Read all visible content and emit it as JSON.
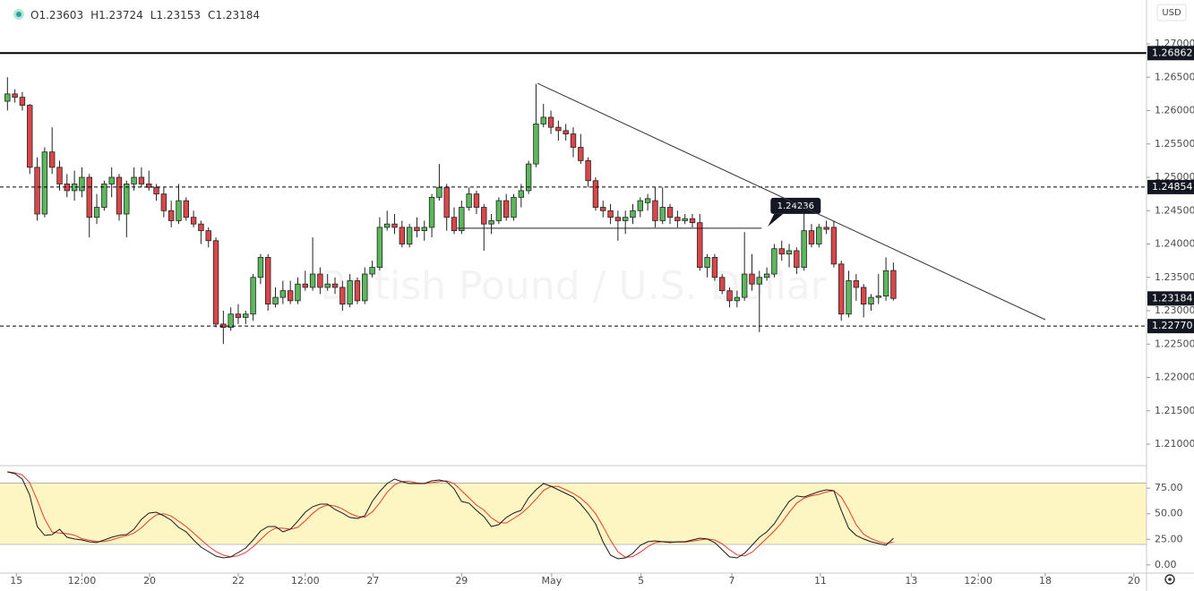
{
  "chart_data": {
    "type": "candlestick",
    "currency": "USD",
    "watermark": "British Pound / U.S. Dollar",
    "ohlc_labels": [
      "O",
      "H",
      "L",
      "C"
    ],
    "up_color": "#5cb85c",
    "down_color": "#d9474b",
    "xlim": [
      -1,
      153
    ],
    "xticks": [
      {
        "value": 1.2,
        "label": "15"
      },
      {
        "value": 10,
        "label": "12:00"
      },
      {
        "value": 19.1,
        "label": "20"
      },
      {
        "value": 31,
        "label": "22"
      },
      {
        "value": 40,
        "label": "12:00"
      },
      {
        "value": 49.1,
        "label": "27"
      },
      {
        "value": 61,
        "label": "29"
      },
      {
        "value": 73.1,
        "label": "May"
      },
      {
        "value": 85.1,
        "label": "5"
      },
      {
        "value": 97.3,
        "label": "7"
      },
      {
        "value": 109.2,
        "label": "11"
      },
      {
        "value": 121.4,
        "label": "13"
      },
      {
        "value": 130.4,
        "label": "12:00"
      },
      {
        "value": 139.4,
        "label": "18"
      },
      {
        "value": 151.3,
        "label": "20"
      }
    ],
    "ylim": [
      1.20678,
      1.27658
    ],
    "yticks": [
      {
        "value": 1.21,
        "label": "1.21000"
      },
      {
        "value": 1.215,
        "label": "1.21500"
      },
      {
        "value": 1.22,
        "label": "1.22000"
      },
      {
        "value": 1.225,
        "label": "1.22500"
      },
      {
        "value": 1.23,
        "label": "1.23000"
      },
      {
        "value": 1.235,
        "label": "1.23500"
      },
      {
        "value": 1.24,
        "label": "1.24000"
      },
      {
        "value": 1.245,
        "label": "1.24500"
      },
      {
        "value": 1.25,
        "label": "1.25000"
      },
      {
        "value": 1.255,
        "label": "1.25500"
      },
      {
        "value": 1.26,
        "label": "1.26000"
      },
      {
        "value": 1.265,
        "label": "1.26500"
      },
      {
        "value": 1.27,
        "label": "1.27000"
      }
    ],
    "open": [
      1.2614,
      1.2625,
      1.262,
      1.2608,
      1.2515,
      1.2445,
      1.2538,
      1.2515,
      1.249,
      1.248,
      1.248,
      1.25,
      1.244,
      1.2455,
      1.249,
      1.25,
      1.2445,
      1.249,
      1.25,
      1.249,
      1.2485,
      1.2475,
      1.245,
      1.2435,
      1.2465,
      1.244,
      1.243,
      1.242,
      1.2405,
      1.228,
      1.2275,
      1.2295,
      1.229,
      1.2295,
      1.235,
      1.238,
      1.231,
      1.232,
      1.233,
      1.2315,
      1.234,
      1.2335,
      1.2355,
      1.2335,
      1.234,
      1.2335,
      1.231,
      1.2345,
      1.2315,
      1.2355,
      1.2365,
      1.2425,
      1.243,
      1.2425,
      1.24,
      1.2425,
      1.242,
      1.2425,
      1.247,
      1.2485,
      1.244,
      1.242,
      1.2455,
      1.2475,
      1.2455,
      1.243,
      1.2435,
      1.2465,
      1.244,
      1.247,
      1.248,
      1.252,
      1.258,
      1.259,
      1.2575,
      1.257,
      1.2565,
      1.2545,
      1.2525,
      1.2495,
      1.2455,
      1.245,
      1.244,
      1.2435,
      1.244,
      1.245,
      1.2462,
      1.2465,
      1.2435,
      1.2455,
      1.244,
      1.2435,
      1.2438,
      1.2432,
      1.2365,
      1.238,
      1.235,
      1.233,
      1.2315,
      1.232,
      1.2355,
      1.234,
      1.235,
      1.2355,
      1.2393,
      1.2385,
      1.239,
      1.2365,
      1.242,
      1.24,
      1.2425,
      1.2425,
      1.237,
      1.2295,
      1.2345,
      1.2335,
      1.231,
      1.232,
      1.2322,
      1.23603
    ],
    "high": [
      1.265,
      1.2632,
      1.2628,
      1.261,
      1.253,
      1.2545,
      1.2575,
      1.2525,
      1.2505,
      1.251,
      1.2515,
      1.2505,
      1.2475,
      1.2495,
      1.2515,
      1.2505,
      1.2495,
      1.2515,
      1.2515,
      1.251,
      1.249,
      1.2485,
      1.2465,
      1.249,
      1.247,
      1.245,
      1.2435,
      1.2425,
      1.241,
      1.23,
      1.2305,
      1.231,
      1.23,
      1.2355,
      1.2385,
      1.2385,
      1.2335,
      1.2345,
      1.2345,
      1.235,
      1.236,
      1.241,
      1.2365,
      1.2355,
      1.235,
      1.2345,
      1.2355,
      1.235,
      1.2365,
      1.2375,
      1.244,
      1.245,
      1.2445,
      1.2435,
      1.243,
      1.244,
      1.2435,
      1.2475,
      1.252,
      1.249,
      1.2455,
      1.2465,
      1.2485,
      1.248,
      1.246,
      1.2445,
      1.247,
      1.2475,
      1.2475,
      1.249,
      1.2525,
      1.264,
      1.261,
      1.26,
      1.2585,
      1.258,
      1.2575,
      1.2565,
      1.253,
      1.25,
      1.2465,
      1.246,
      1.245,
      1.245,
      1.246,
      1.247,
      1.2475,
      1.2485,
      1.2485,
      1.246,
      1.245,
      1.2445,
      1.2445,
      1.2445,
      1.2385,
      1.2385,
      1.2355,
      1.2335,
      1.233,
      1.2418,
      1.2385,
      1.236,
      1.2365,
      1.24,
      1.2405,
      1.24,
      1.2395,
      1.245,
      1.243,
      1.243,
      1.2435,
      1.2435,
      1.2375,
      1.236,
      1.2355,
      1.234,
      1.2325,
      1.2355,
      1.238,
      1.23724
    ],
    "low": [
      1.26,
      1.2612,
      1.26,
      1.2505,
      1.2435,
      1.244,
      1.2505,
      1.248,
      1.247,
      1.2465,
      1.247,
      1.241,
      1.243,
      1.245,
      1.247,
      1.2435,
      1.241,
      1.248,
      1.2485,
      1.248,
      1.2465,
      1.244,
      1.2425,
      1.243,
      1.2435,
      1.2425,
      1.24,
      1.2395,
      1.2275,
      1.225,
      1.227,
      1.228,
      1.228,
      1.2285,
      1.234,
      1.23,
      1.2305,
      1.231,
      1.231,
      1.231,
      1.233,
      1.233,
      1.2325,
      1.233,
      1.2325,
      1.23,
      1.2305,
      1.231,
      1.231,
      1.235,
      1.236,
      1.242,
      1.2415,
      1.2395,
      1.2395,
      1.241,
      1.2405,
      1.241,
      1.2465,
      1.242,
      1.2415,
      1.2415,
      1.245,
      1.2445,
      1.239,
      1.2415,
      1.243,
      1.2435,
      1.2435,
      1.2455,
      1.2475,
      1.2515,
      1.2575,
      1.2565,
      1.2555,
      1.2555,
      1.253,
      1.252,
      1.2485,
      1.245,
      1.244,
      1.243,
      1.2405,
      1.2415,
      1.243,
      1.244,
      1.245,
      1.2425,
      1.243,
      1.243,
      1.2425,
      1.243,
      1.2425,
      1.236,
      1.235,
      1.2345,
      1.2325,
      1.2305,
      1.2305,
      1.2315,
      1.233,
      1.2268,
      1.2345,
      1.235,
      1.2375,
      1.2365,
      1.2355,
      1.236,
      1.2395,
      1.2395,
      1.2415,
      1.2365,
      1.2285,
      1.229,
      1.2315,
      1.229,
      1.23,
      1.231,
      1.2315,
      1.23153
    ],
    "close": [
      1.2625,
      1.262,
      1.2608,
      1.2515,
      1.2445,
      1.2538,
      1.2515,
      1.249,
      1.248,
      1.249,
      1.25,
      1.244,
      1.2455,
      1.249,
      1.25,
      1.2445,
      1.249,
      1.25,
      1.249,
      1.2485,
      1.2475,
      1.245,
      1.2435,
      1.2465,
      1.244,
      1.243,
      1.242,
      1.2405,
      1.228,
      1.2275,
      1.2295,
      1.229,
      1.2295,
      1.235,
      1.238,
      1.231,
      1.232,
      1.233,
      1.2315,
      1.234,
      1.2335,
      1.2355,
      1.2335,
      1.234,
      1.2335,
      1.231,
      1.2345,
      1.2315,
      1.2355,
      1.2365,
      1.2425,
      1.243,
      1.2425,
      1.24,
      1.2425,
      1.242,
      1.2425,
      1.247,
      1.2485,
      1.244,
      1.242,
      1.2455,
      1.2475,
      1.2455,
      1.243,
      1.2435,
      1.2465,
      1.244,
      1.247,
      1.248,
      1.252,
      1.258,
      1.259,
      1.2575,
      1.257,
      1.2565,
      1.2545,
      1.2525,
      1.2495,
      1.2455,
      1.245,
      1.244,
      1.2435,
      1.244,
      1.245,
      1.2465,
      1.2468,
      1.2435,
      1.2455,
      1.244,
      1.2435,
      1.2438,
      1.2432,
      1.2365,
      1.238,
      1.235,
      1.233,
      1.2315,
      1.232,
      1.2355,
      1.234,
      1.235,
      1.2355,
      1.2393,
      1.2385,
      1.239,
      1.2365,
      1.242,
      1.24,
      1.2425,
      1.2422,
      1.237,
      1.2295,
      1.2345,
      1.2335,
      1.231,
      1.232,
      1.2322,
      1.236,
      1.23184
    ],
    "levels": [
      {
        "value": 1.26862,
        "style": "solid"
      },
      {
        "value": 1.24854,
        "style": "dashed"
      },
      {
        "value": 1.2277,
        "label": "1.22770",
        "style": "dashed"
      }
    ],
    "annotation": {
      "value": 1.24236,
      "x_range": [
        60.4,
        101.3
      ]
    },
    "trendline": {
      "points": [
        [
          71.2,
          1.26409
        ],
        [
          139.4,
          1.22866
        ]
      ]
    },
    "indicator": {
      "type": "stochastic",
      "ylim": [
        -8,
        97
      ],
      "band": [
        20,
        80
      ],
      "band_color": "#fdf6c3",
      "yticks": [
        {
          "value": 0,
          "label": "0.00"
        },
        {
          "value": 25,
          "label": "25.00"
        },
        {
          "value": 50,
          "label": "50.00"
        },
        {
          "value": 75,
          "label": "75.00"
        }
      ],
      "k": {
        "color": "#1a1a1a",
        "values": [
          90.9,
          89.1,
          83.9,
          68.1,
          37.5,
          28.8,
          29.6,
          34.9,
          27,
          25.3,
          24.4,
          22.6,
          21.8,
          24.4,
          27,
          28.8,
          29.6,
          34.9,
          44.5,
          50.6,
          51.5,
          48,
          43.6,
          36.6,
          32.3,
          24.4,
          17.4,
          13,
          8.6,
          6.9,
          7.8,
          12.1,
          16.5,
          24.4,
          33.1,
          37.5,
          37.5,
          32.3,
          34.9,
          42.8,
          51.5,
          56.8,
          59.4,
          59.4,
          54.1,
          50.6,
          46.3,
          45.4,
          48,
          62,
          71.6,
          79.5,
          83.9,
          81.3,
          79.5,
          79.5,
          79.5,
          82.1,
          83,
          81.3,
          74.3,
          62,
          60.3,
          53.3,
          47.1,
          37.5,
          39.3,
          46.3,
          50.6,
          53.3,
          65.5,
          73.4,
          79.5,
          76.9,
          73.4,
          69.9,
          66.4,
          59.4,
          50.6,
          40.1,
          22.6,
          9.5,
          6,
          6.9,
          11.3,
          19.1,
          22.6,
          23.5,
          22.6,
          21.8,
          22.6,
          22.6,
          24.4,
          26.1,
          25.3,
          21.8,
          14.8,
          7.8,
          6.9,
          11.3,
          19.1,
          27,
          32.3,
          40.1,
          51.5,
          62,
          67.3,
          66.4,
          69,
          71.6,
          73.4,
          72.5,
          53.3,
          35.8,
          28.8,
          25.3,
          22.6,
          20.9,
          19.1,
          26
        ]
      },
      "d": {
        "color": "#e8392b",
        "values": [
          91,
          90,
          88,
          80.4,
          63.2,
          44.8,
          32,
          31.1,
          30.5,
          29.1,
          25.6,
          24.1,
          22.9,
          22.9,
          24.4,
          26.7,
          28.5,
          31.1,
          36.3,
          43.3,
          48.9,
          50,
          47.7,
          42.7,
          37.5,
          31.1,
          24.7,
          18.3,
          13,
          9.5,
          7.8,
          8.9,
          12.1,
          17.7,
          24.7,
          31.7,
          36,
          35.8,
          34.9,
          36.7,
          43.1,
          50.4,
          55.9,
          58.5,
          57.6,
          54.7,
          50.3,
          47.4,
          46.6,
          51.8,
          60.5,
          71,
          78.3,
          81.6,
          81.6,
          80.1,
          79.5,
          80.4,
          81.5,
          82.1,
          79.5,
          72.5,
          65.5,
          58.5,
          53.6,
          46,
          41.3,
          41,
          45.4,
          50.1,
          56.5,
          64.1,
          72.8,
          76.6,
          76.6,
          73.4,
          69.9,
          65.2,
          58.8,
          50,
          37.8,
          24.1,
          12.7,
          7.5,
          8.1,
          12.4,
          17.7,
          21.7,
          22.9,
          22.6,
          22.3,
          22.3,
          23.2,
          24.4,
          25.3,
          24.4,
          20.6,
          14.8,
          9.8,
          8.7,
          12.4,
          19.1,
          26.1,
          33.1,
          41.3,
          51.2,
          60.3,
          65.2,
          67.6,
          69,
          71.3,
          72.5,
          66.4,
          53.9,
          39.3,
          30,
          25.6,
          22.9,
          20.9,
          22.3
        ]
      }
    }
  }
}
